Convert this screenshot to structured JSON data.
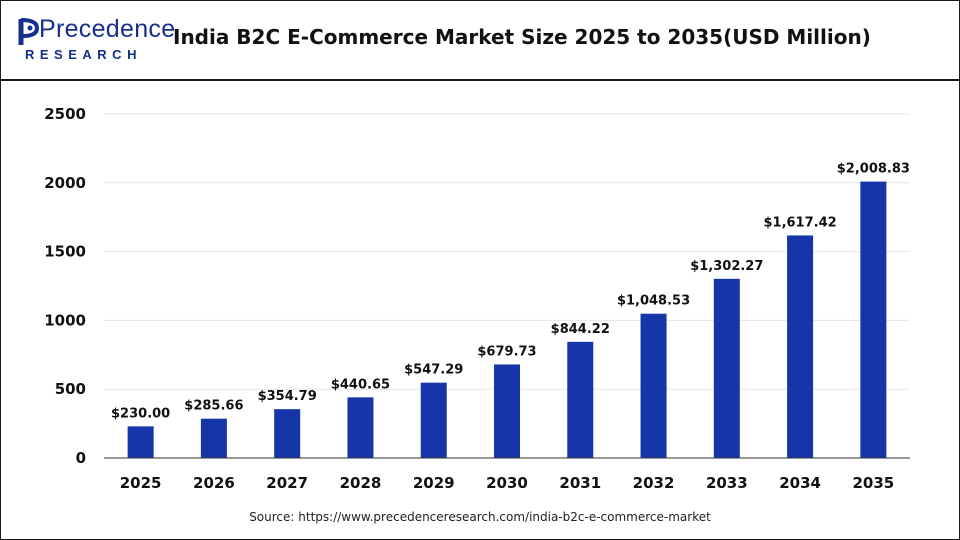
{
  "header": {
    "logo_text": "Precedence",
    "logo_subtext": "RESEARCH",
    "title": "India B2C E-Commerce Market Size 2025 to 2035(USD Million)"
  },
  "source": "Source: https://www.precedenceresearch.com/india-b2c-e-commerce-market",
  "colors": {
    "bar": "#1535a8",
    "brand": "#16308c",
    "grid": "#e6e6e6"
  },
  "chart_data": {
    "type": "bar",
    "title": "India B2C E-Commerce Market Size 2025 to 2035(USD Million)",
    "xlabel": "",
    "ylabel": "",
    "categories": [
      "2025",
      "2026",
      "2027",
      "2028",
      "2029",
      "2030",
      "2031",
      "2032",
      "2033",
      "2034",
      "2035"
    ],
    "values": [
      230.0,
      285.66,
      354.79,
      440.65,
      547.29,
      679.73,
      844.22,
      1048.53,
      1302.27,
      1617.42,
      2008.83
    ],
    "data_labels": [
      "$230.00",
      "$285.66",
      "$354.79",
      "$440.65",
      "$547.29",
      "$679.73",
      "$844.22",
      "$1,048.53",
      "$1,302.27",
      "$1,617.42",
      "$2,008.83"
    ],
    "y_ticks": [
      "0",
      "500",
      "1000",
      "1500",
      "2000",
      "2500"
    ],
    "ylim": [
      0,
      2500
    ],
    "grid": true,
    "legend": "none"
  }
}
